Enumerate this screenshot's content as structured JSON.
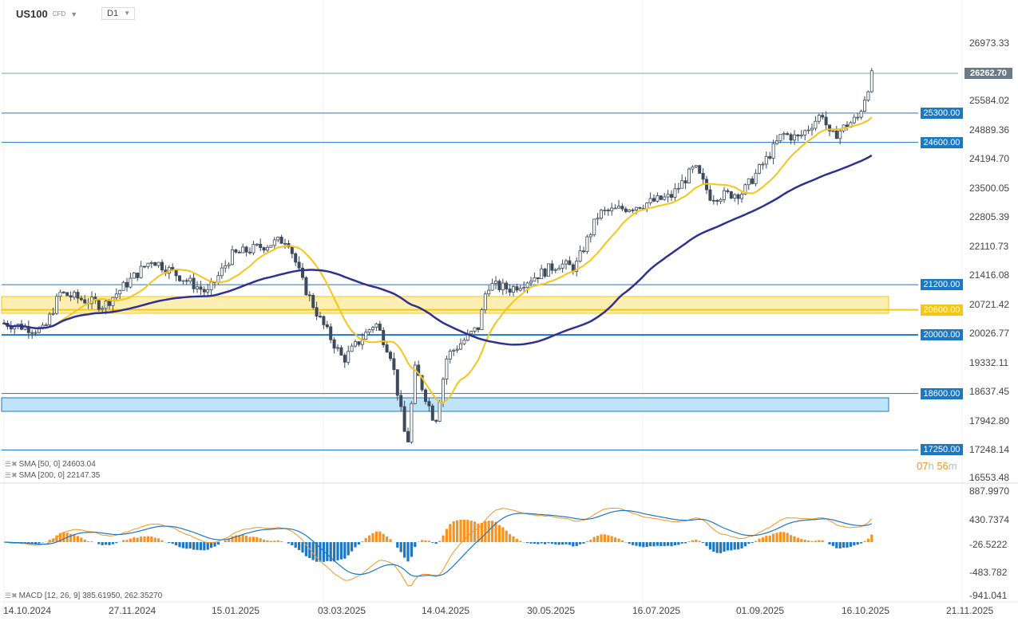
{
  "header": {
    "symbol": "US100",
    "type": "CFD",
    "timeframe": "D1"
  },
  "price_axis": [
    "26973.33",
    "25584.02",
    "24889.36",
    "24194.70",
    "23500.05",
    "22805.39",
    "22110.73",
    "21416.08",
    "20721.42",
    "20026.77",
    "19332.11",
    "18637.45",
    "17942.80",
    "17248.14",
    "16553.48"
  ],
  "macd_axis": [
    "887.9970",
    "430.7374",
    "-26.5222",
    "-483.782",
    "-941.041"
  ],
  "time_axis": [
    "14.10.2024",
    "27.11.2024",
    "15.01.2025",
    "03.03.2025",
    "14.04.2025",
    "30.05.2025",
    "16.07.2025",
    "01.09.2025",
    "16.10.2025",
    "21.11.2025"
  ],
  "current_price": "26262.70",
  "levels": [
    {
      "value": "25300.00"
    },
    {
      "value": "24600.00"
    },
    {
      "value": "21200.00"
    },
    {
      "value": "20600.00"
    },
    {
      "value": "20000.00"
    },
    {
      "value": "18600.00"
    },
    {
      "value": "17250.00"
    }
  ],
  "countdown": {
    "h": "07",
    "h_unit": "h",
    "m": "56",
    "m_unit": "m"
  },
  "indicators": {
    "sma50": "SMA [50, 0] 24603.04",
    "sma200": "SMA [200, 0] 22147.35",
    "macd": "MACD [12, 26, 9] 385.61950,  262.35270"
  },
  "colors": {
    "bull": "#ffffff",
    "bear": "#3c4a5c",
    "sma50": "#f5c518",
    "sma200": "#2e3192",
    "level": "#1b78c2",
    "zone_yellow": "#fdefb2",
    "zone_blue": "#bfe3f8",
    "macd_pos": "#f7931e",
    "macd_neg": "#1b78c2"
  },
  "chart_data": {
    "type": "candlestick",
    "price_path": [
      [
        0,
        20300
      ],
      [
        55,
        20100
      ],
      [
        75,
        21000
      ],
      [
        130,
        20700
      ],
      [
        190,
        21800
      ],
      [
        260,
        21000
      ],
      [
        290,
        21900
      ],
      [
        360,
        22300
      ],
      [
        380,
        21200
      ],
      [
        400,
        20400
      ],
      [
        430,
        19400
      ],
      [
        470,
        20300
      ],
      [
        490,
        19500
      ],
      [
        510,
        17300
      ],
      [
        520,
        19200
      ],
      [
        545,
        17900
      ],
      [
        560,
        19500
      ],
      [
        600,
        20200
      ],
      [
        610,
        21200
      ],
      [
        640,
        21100
      ],
      [
        700,
        21700
      ],
      [
        720,
        21600
      ],
      [
        750,
        22900
      ],
      [
        800,
        23100
      ],
      [
        840,
        23300
      ],
      [
        870,
        24000
      ],
      [
        890,
        23300
      ],
      [
        930,
        23400
      ],
      [
        960,
        24200
      ],
      [
        980,
        24800
      ],
      [
        1000,
        24700
      ],
      [
        1030,
        25300
      ],
      [
        1040,
        24700
      ],
      [
        1060,
        25000
      ],
      [
        1075,
        25200
      ],
      [
        1093,
        26262
      ]
    ]
  }
}
